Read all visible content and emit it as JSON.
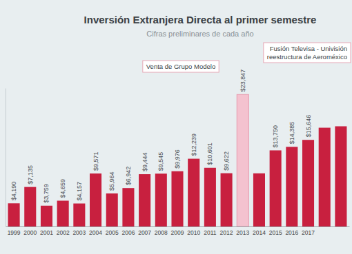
{
  "chart_data": {
    "type": "bar",
    "title": "Inversión Extranjera Directa al primer semestre",
    "subtitle": "Cifras preliminares de cada año",
    "annotations": [
      [
        "Venta de Grupo Modelo"
      ],
      [
        "Fusión Televisa - Univisión",
        "reestructura de Aeroméxico"
      ]
    ],
    "categories": [
      "1999",
      "2000",
      "2001",
      "2002",
      "2003",
      "2004",
      "2005",
      "2006",
      "2007",
      "2008",
      "2009",
      "2010",
      "2011",
      "2012",
      "2013",
      "2014",
      "2015",
      "2016",
      "2017",
      null,
      null
    ],
    "values": [
      4190,
      7135,
      3759,
      4659,
      4157,
      9571,
      5964,
      6942,
      9444,
      9545,
      9976,
      12239,
      10601,
      9622,
      23847,
      9600,
      13750,
      14385,
      15646,
      17842,
      18102
    ],
    "value_labels": [
      "$4,190",
      "$7,135",
      "$3,759",
      "$4,659",
      "$4,157",
      "$9,571",
      "$5,964",
      "$6,942",
      "$9,444",
      "$9,545",
      "$9,976",
      "$12,239",
      "$10,601",
      "$9,622",
      "$23,847",
      null,
      "$13,750",
      "$14,385",
      "$15,646",
      null,
      null
    ],
    "colors": [
      "#c8203f",
      "#c8203f",
      "#c8203f",
      "#c8203f",
      "#c8203f",
      "#c8203f",
      "#c8203f",
      "#c8203f",
      "#c8203f",
      "#c8203f",
      "#c8203f",
      "#c8203f",
      "#c8203f",
      "#c8203f",
      "#f4c2cf",
      "#c8203f",
      "#c8203f",
      "#c8203f",
      "#c8203f",
      "#c8203f",
      "#c8203f"
    ],
    "ylim": [
      0,
      25000
    ],
    "data_labels": true,
    "tick_labels": "x",
    "grid": false
  }
}
